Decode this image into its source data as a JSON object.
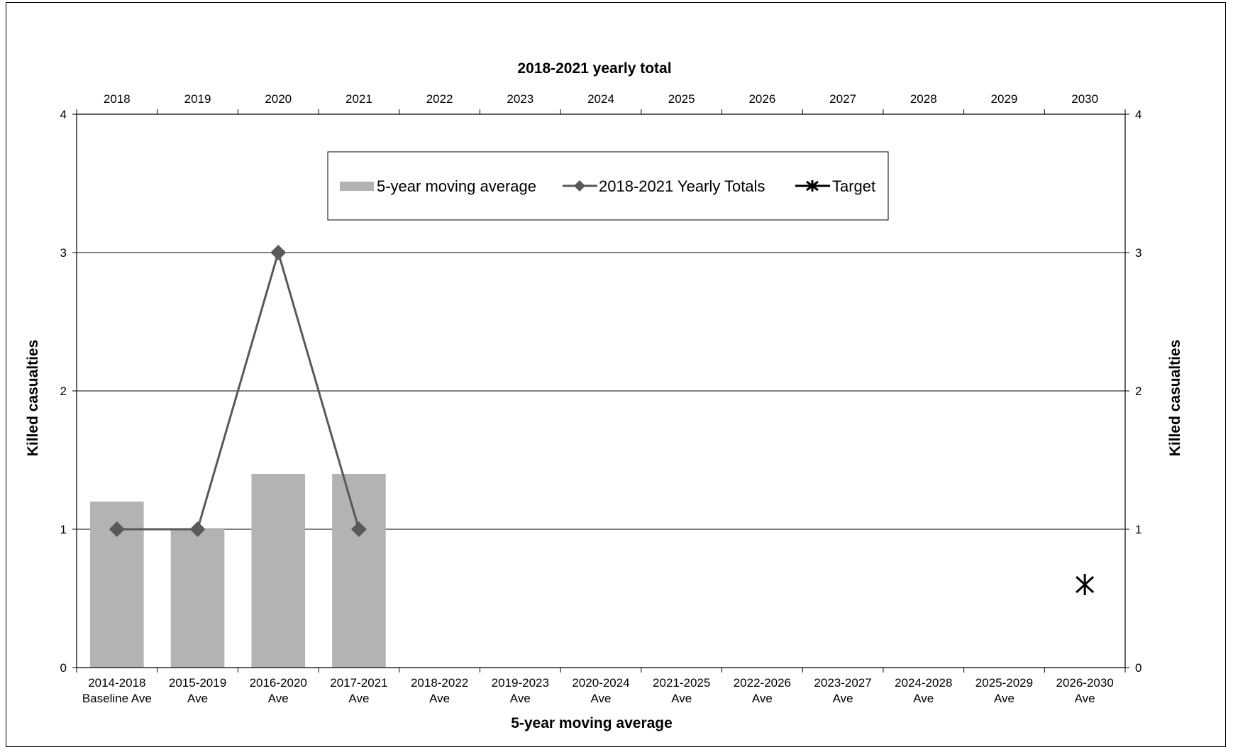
{
  "chart_data": {
    "type": "bar",
    "top_axis_title": "2018-2021 yearly total",
    "xlabel": "5-year moving average",
    "ylabel": "Killed casualties",
    "ylabel_right": "Killed casualties",
    "ylim": [
      0,
      4
    ],
    "y_ticks": [
      "0",
      "1",
      "2",
      "3",
      "4"
    ],
    "grid": true,
    "legend_placement": "top-center",
    "categories": [
      [
        "2014-2018",
        "Baseline Ave"
      ],
      [
        "2015-2019",
        "Ave"
      ],
      [
        "2016-2020",
        "Ave"
      ],
      [
        "2017-2021",
        "Ave"
      ],
      [
        "2018-2022",
        "Ave"
      ],
      [
        "2019-2023",
        "Ave"
      ],
      [
        "2020-2024",
        "Ave"
      ],
      [
        "2021-2025",
        "Ave"
      ],
      [
        "2022-2026",
        "Ave"
      ],
      [
        "2023-2027",
        "Ave"
      ],
      [
        "2024-2028",
        "Ave"
      ],
      [
        "2025-2029",
        "Ave"
      ],
      [
        "2026-2030",
        "Ave"
      ]
    ],
    "top_categories": [
      "2018",
      "2019",
      "2020",
      "2021",
      "2022",
      "2023",
      "2024",
      "2025",
      "2026",
      "2027",
      "2028",
      "2029",
      "2030"
    ],
    "series": [
      {
        "name": "5-year moving average",
        "kind": "bar",
        "color": "#b3b3b3",
        "values": [
          1.2,
          1.0,
          1.4,
          1.4,
          null,
          null,
          null,
          null,
          null,
          null,
          null,
          null,
          null
        ]
      },
      {
        "name": "2018-2021 Yearly Totals",
        "kind": "line",
        "marker": "diamond",
        "color": "#595959",
        "values": [
          1,
          1,
          3,
          1,
          null,
          null,
          null,
          null,
          null,
          null,
          null,
          null,
          null
        ]
      },
      {
        "name": "Target",
        "kind": "marker",
        "marker": "asterisk",
        "color": "#000000",
        "values": [
          null,
          null,
          null,
          null,
          null,
          null,
          null,
          null,
          null,
          null,
          null,
          null,
          0.6
        ]
      }
    ]
  }
}
